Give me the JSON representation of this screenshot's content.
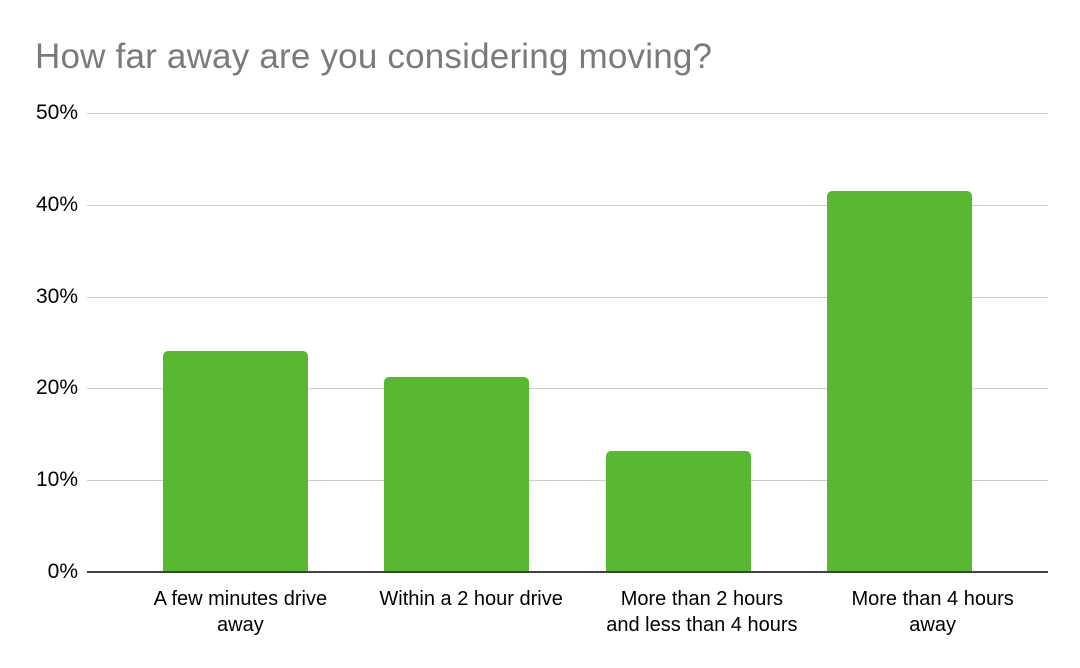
{
  "chart_data": {
    "type": "bar",
    "title": "How far away are you considering moving?",
    "categories": [
      "A few minutes drive away",
      "Within a 2 hour drive",
      "More than 2 hours and less than 4 hours",
      "More than 4 hours away"
    ],
    "category_lines": [
      [
        "A few minutes drive",
        "away"
      ],
      [
        "Within a 2 hour drive",
        ""
      ],
      [
        "More than 2 hours",
        "and less than 4 hours"
      ],
      [
        "More than 4 hours",
        "away"
      ]
    ],
    "values": [
      24.1,
      21.2,
      13.2,
      41.5
    ],
    "xlabel": "",
    "ylabel": "",
    "ylim": [
      0,
      50
    ],
    "yticks": [
      0,
      10,
      20,
      30,
      40,
      50
    ],
    "ytick_labels": [
      "0%",
      "10%",
      "20%",
      "30%",
      "40%",
      "50%"
    ],
    "grid": true,
    "legend": "none",
    "colors": {
      "bar": "#58b82f",
      "title_text": "#7a7a7a",
      "axis_text": "#000000",
      "gridline": "#cccccc",
      "baseline": "#424242"
    }
  }
}
